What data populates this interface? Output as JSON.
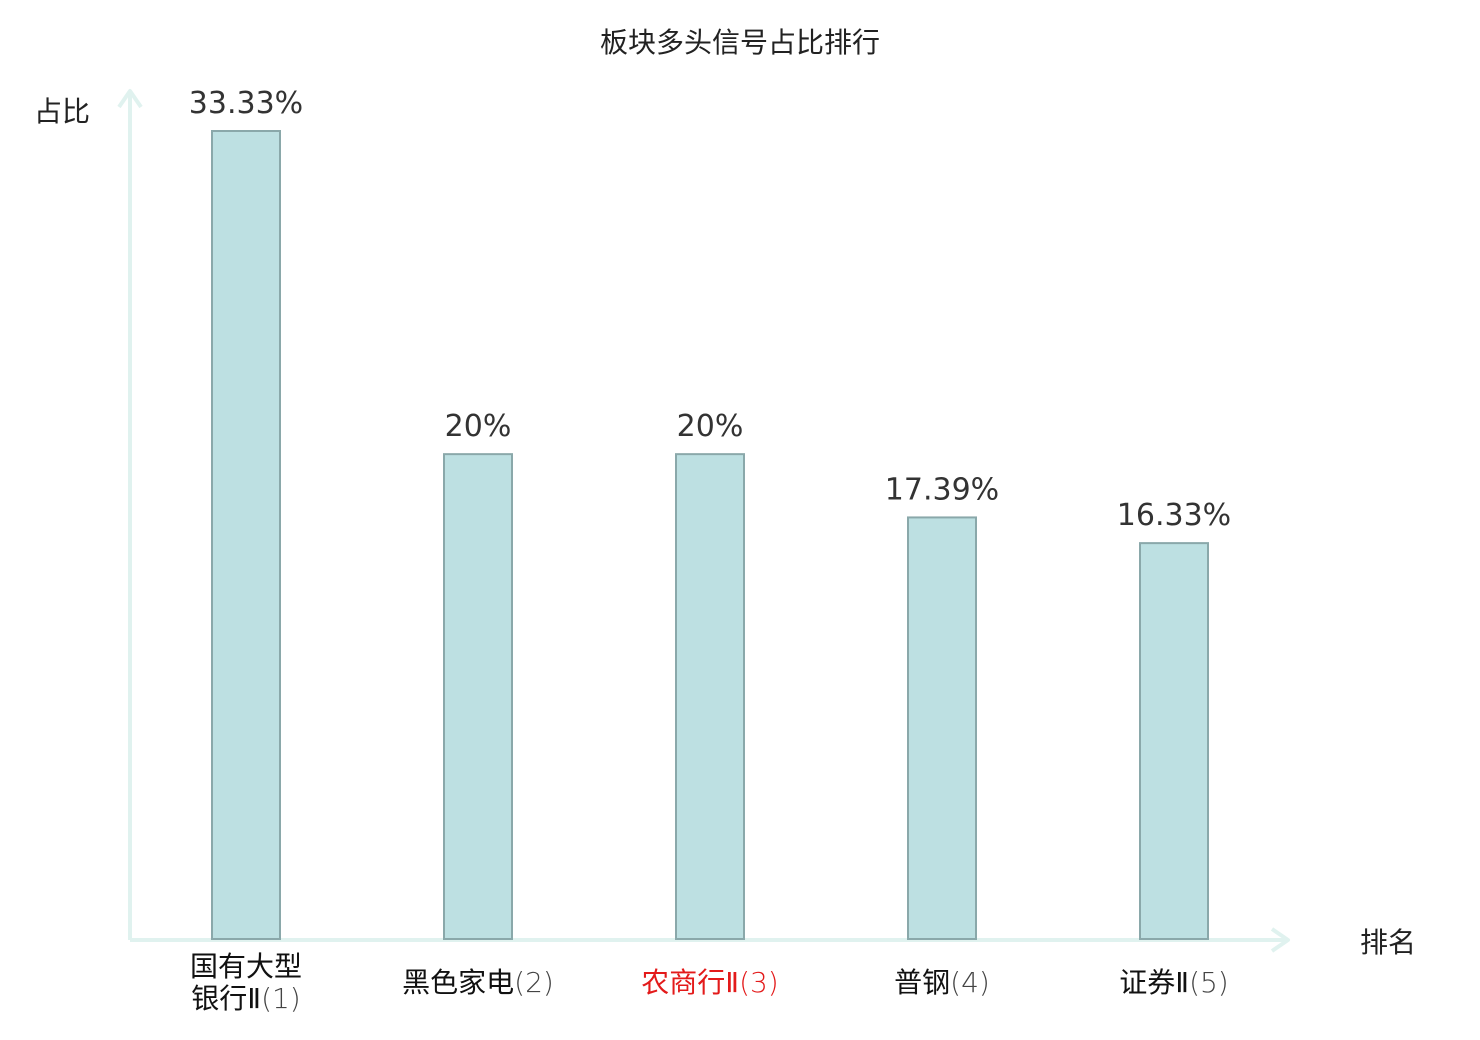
{
  "chart_data": {
    "type": "bar",
    "title": "板块多头信号占比排行",
    "ylabel": "占比",
    "xlabel": "排名",
    "categories": [
      {
        "lines": [
          "国有大型",
          "银行Ⅱ"
        ],
        "rank": "(1)",
        "highlight": false
      },
      {
        "lines": [
          "黑色家电"
        ],
        "rank": "(2)",
        "highlight": false
      },
      {
        "lines": [
          "农商行Ⅱ"
        ],
        "rank": "(3)",
        "highlight": true
      },
      {
        "lines": [
          "普钢"
        ],
        "rank": "(4)",
        "highlight": false
      },
      {
        "lines": [
          "证券Ⅱ"
        ],
        "rank": "(5)",
        "highlight": false
      }
    ],
    "values": [
      33.33,
      20,
      20,
      17.39,
      16.33
    ],
    "value_labels": [
      "33.33%",
      "20%",
      "20%",
      "17.39%",
      "16.33%"
    ],
    "ylim": [
      0,
      33.33
    ],
    "grid": false,
    "colors": {
      "bar_fill": "#bde0e2",
      "bar_stroke": "#8aa8aa",
      "axis": "#e0f2ef",
      "highlight_text": "#e31a1a"
    }
  }
}
